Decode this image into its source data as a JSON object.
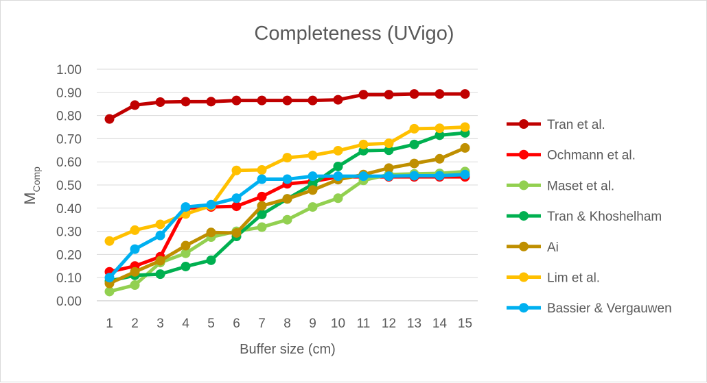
{
  "chart_data": {
    "type": "line",
    "title": "Completeness (UVigo)",
    "xlabel": "Buffer size (cm)",
    "ylabel_main": "M",
    "ylabel_sub": "Comp",
    "ylim": [
      0,
      1
    ],
    "y_ticks": [
      "0.00",
      "0.10",
      "0.20",
      "0.30",
      "0.40",
      "0.50",
      "0.60",
      "0.70",
      "0.80",
      "0.90",
      "1.00"
    ],
    "grid": true,
    "legend_position": "right",
    "categories": [
      "1",
      "2",
      "3",
      "4",
      "5",
      "6",
      "7",
      "8",
      "9",
      "10",
      "11",
      "12",
      "13",
      "14",
      "15"
    ],
    "series": [
      {
        "name": "Tran et al.",
        "color": "#c00000",
        "values": [
          0.785,
          0.845,
          0.858,
          0.86,
          0.86,
          0.865,
          0.865,
          0.865,
          0.865,
          0.868,
          0.89,
          0.89,
          0.893,
          0.893,
          0.893
        ]
      },
      {
        "name": "Ochmann et al.",
        "color": "#ff0000",
        "values": [
          0.125,
          0.15,
          0.19,
          0.4,
          0.405,
          0.408,
          0.45,
          0.505,
          0.515,
          0.535,
          0.535,
          0.535,
          0.535,
          0.535,
          0.535
        ]
      },
      {
        "name": "Maset et al.",
        "color": "#92d050",
        "values": [
          0.04,
          0.068,
          0.165,
          0.205,
          0.275,
          0.3,
          0.318,
          0.35,
          0.405,
          0.443,
          0.52,
          0.545,
          0.548,
          0.55,
          0.558
        ]
      },
      {
        "name": "Tran & Khoshelham",
        "color": "#00b050",
        "values": [
          0.085,
          0.11,
          0.115,
          0.148,
          0.175,
          0.278,
          0.373,
          0.44,
          0.503,
          0.58,
          0.648,
          0.65,
          0.675,
          0.715,
          0.725
        ]
      },
      {
        "name": "Ai",
        "color": "#bf8f00",
        "values": [
          0.075,
          0.125,
          0.173,
          0.238,
          0.295,
          0.293,
          0.41,
          0.44,
          0.478,
          0.523,
          0.545,
          0.573,
          0.593,
          0.613,
          0.66
        ]
      },
      {
        "name": "Lim et al.",
        "color": "#ffc000",
        "values": [
          0.258,
          0.305,
          0.33,
          0.375,
          0.41,
          0.563,
          0.565,
          0.618,
          0.628,
          0.648,
          0.675,
          0.68,
          0.743,
          0.745,
          0.75
        ]
      },
      {
        "name": "Bassier & Vergauwen",
        "color": "#00b0f0",
        "values": [
          0.1,
          0.223,
          0.282,
          0.405,
          0.415,
          0.443,
          0.525,
          0.525,
          0.538,
          0.538,
          0.538,
          0.538,
          0.54,
          0.54,
          0.545
        ]
      }
    ]
  }
}
